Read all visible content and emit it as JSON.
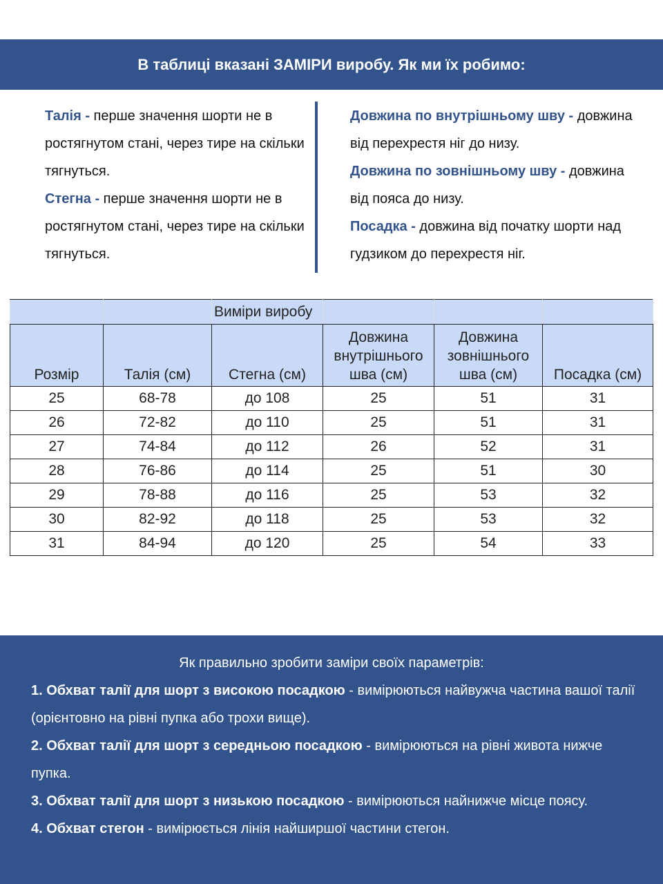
{
  "banner": {
    "title": "В таблиці вказані ЗАМІРИ виробу. Як ми їх робимо:"
  },
  "left": [
    {
      "term": "Талія -",
      "text": " перше значення шорти не в ростягнутом стані, через тире на скільки тягнуться."
    },
    {
      "term": "Стегна -",
      "text": " перше значення шорти не в ростягнутом стані, через тире на скільки тягнуться."
    }
  ],
  "right": [
    {
      "term": "Довжина по внутрішньому шву -",
      "text": " довжина від перехрестя ніг до низу."
    },
    {
      "term": "Довжина по зовнішньому шву -",
      "text": " довжина від пояса до низу."
    },
    {
      "term": "Посадка -",
      "text": " довжина від початку шорти над гудзиком до перехрестя ніг."
    }
  ],
  "table": {
    "group_header": "Виміри виробу",
    "headers": [
      "Розмір",
      "Талія (см)",
      "Стегна (см)",
      "Довжина внутрішнього шва (см)",
      "Довжина зовнішнього шва (см)",
      "Посадка (см)"
    ],
    "rows": [
      [
        "25",
        "68-78",
        "до 108",
        "25",
        "51",
        "31"
      ],
      [
        "26",
        "72-82",
        "до 110",
        "25",
        "51",
        "31"
      ],
      [
        "27",
        "74-84",
        "до 112",
        "26",
        "52",
        "31"
      ],
      [
        "28",
        "76-86",
        "до 114",
        "25",
        "51",
        "30"
      ],
      [
        "29",
        "78-88",
        "до 116",
        "25",
        "53",
        "32"
      ],
      [
        "30",
        "82-92",
        "до 118",
        "25",
        "53",
        "32"
      ],
      [
        "31",
        "84-94",
        "до 120",
        "25",
        "54",
        "33"
      ]
    ]
  },
  "howto": {
    "title": "Як правильно зробити заміри своїх параметрів:",
    "items": [
      {
        "term": "1. Обхват талії для шорт з високою посадкою",
        "text": " - вимірюються найвужча частина вашої талії (орієнтовно на рівні пупка або трохи вище)."
      },
      {
        "term": "2. Обхват талії для шорт з середньою посадкою",
        "text": " - вимірюються на рівні живота нижче пупка."
      },
      {
        "term": "3. Обхват талії для шорт з низькою посадкою",
        "text": " - вимірюються найнижче місце поясу."
      },
      {
        "term": "4. Обхват стегон",
        "text": " - вимірюється лінія найширшої частини стегон."
      }
    ]
  },
  "colors": {
    "brand": "#33538c",
    "table_header": "#c9daf8"
  }
}
